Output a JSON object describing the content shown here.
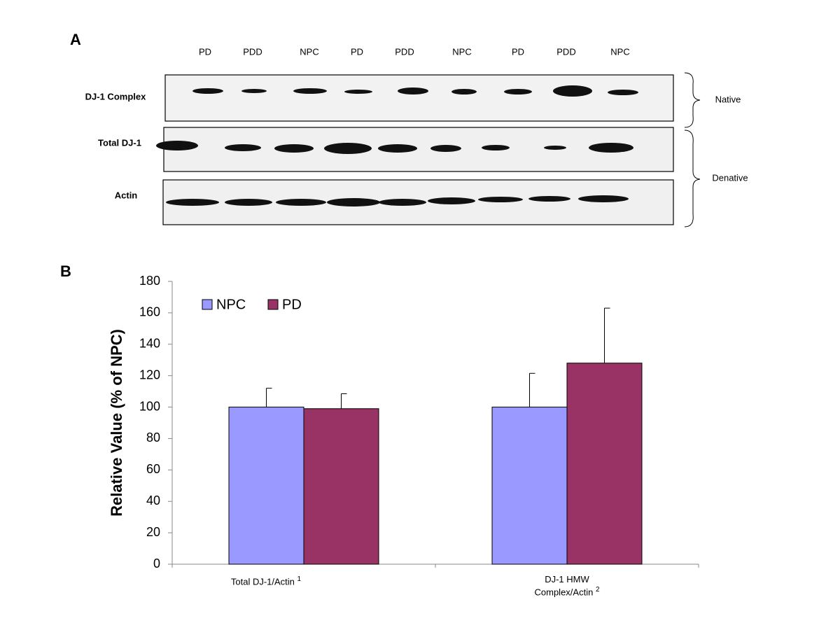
{
  "figure": {
    "panel_a_label": "A",
    "panel_b_label": "B"
  },
  "blot": {
    "lanes": [
      "PD",
      "PDD",
      "NPC",
      "PD",
      "PDD",
      "NPC",
      "PD",
      "PDD",
      "NPC"
    ],
    "rows": [
      "DJ-1 Complex",
      "Total DJ-1",
      "Actin"
    ],
    "groups": [
      "Native",
      "Denative"
    ]
  },
  "chart_data": {
    "type": "bar",
    "categories": [
      "Total DJ-1/Actin",
      "DJ-1 HMW Complex/Actin"
    ],
    "category_notes": [
      "1",
      "2"
    ],
    "y_label": "Relative Value (% of NPC)",
    "series": [
      {
        "name": "NPC",
        "color": "#9999ff",
        "values": [
          100,
          100
        ],
        "errors": [
          12,
          21.5
        ]
      },
      {
        "name": "PD",
        "color": "#993366",
        "values": [
          99,
          128
        ],
        "errors": [
          9.5,
          35
        ]
      }
    ],
    "ylim": [
      0,
      180
    ],
    "yticks": [
      0,
      20,
      40,
      60,
      80,
      100,
      120,
      140,
      160,
      180
    ],
    "legend": "upper left",
    "grid": false
  }
}
